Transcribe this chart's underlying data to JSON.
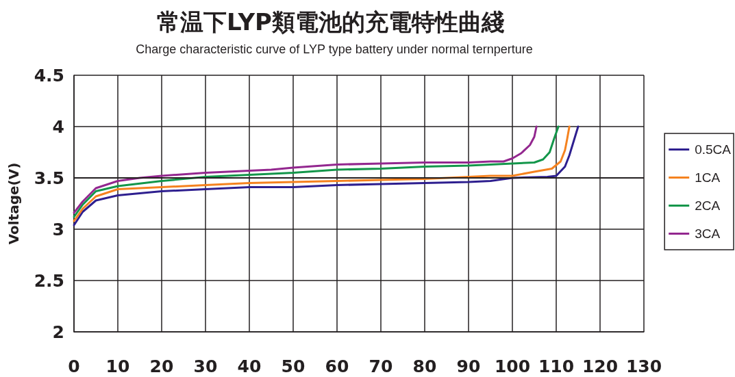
{
  "chart_data": {
    "type": "line",
    "title": "常温下LYP類電池的充電特性曲綫",
    "subtitle": "Charge characteristic curve of LYP type battery under normal ternperture",
    "ylabel": "Voltage(V)",
    "xlim": [
      0,
      130
    ],
    "xticks": [
      0,
      10,
      20,
      30,
      40,
      50,
      60,
      70,
      80,
      90,
      100,
      110,
      120,
      130
    ],
    "ylim": [
      2,
      4.5
    ],
    "yticks": [
      2,
      2.5,
      3,
      3.5,
      4,
      4.5
    ],
    "grid": true,
    "legend": "right",
    "marker": "none",
    "line_style": "solid",
    "ref_lines": [
      {
        "axis": "y",
        "value": 3.5,
        "color": "#231f20"
      }
    ],
    "series": [
      {
        "name": "0.5CA",
        "color": "#2e1f8f",
        "x": [
          0,
          2,
          5,
          10,
          20,
          30,
          40,
          50,
          60,
          70,
          80,
          90,
          95,
          100,
          108,
          110,
          112,
          113,
          114,
          115
        ],
        "values": [
          3.04,
          3.17,
          3.28,
          3.33,
          3.37,
          3.39,
          3.41,
          3.41,
          3.43,
          3.44,
          3.45,
          3.46,
          3.47,
          3.5,
          3.51,
          3.52,
          3.61,
          3.72,
          3.86,
          4.0
        ]
      },
      {
        "name": "1CA",
        "color": "#f5821f",
        "x": [
          0,
          2,
          5,
          10,
          20,
          30,
          40,
          50,
          60,
          70,
          80,
          90,
          95,
          100,
          105,
          109,
          111,
          112,
          112.5,
          113
        ],
        "values": [
          3.08,
          3.2,
          3.32,
          3.39,
          3.41,
          3.43,
          3.45,
          3.46,
          3.47,
          3.48,
          3.49,
          3.51,
          3.52,
          3.52,
          3.56,
          3.59,
          3.66,
          3.77,
          3.88,
          4.0
        ]
      },
      {
        "name": "2CA",
        "color": "#13964a",
        "x": [
          0,
          2,
          5,
          10,
          20,
          30,
          40,
          50,
          60,
          70,
          80,
          90,
          95,
          100,
          105,
          107,
          108.5,
          109.5,
          110.5
        ],
        "values": [
          3.12,
          3.24,
          3.37,
          3.42,
          3.47,
          3.51,
          3.53,
          3.55,
          3.58,
          3.59,
          3.61,
          3.62,
          3.63,
          3.64,
          3.65,
          3.68,
          3.75,
          3.88,
          4.0
        ]
      },
      {
        "name": "3CA",
        "color": "#93278f",
        "x": [
          0,
          2,
          5,
          10,
          15,
          20,
          30,
          40,
          45,
          50,
          60,
          70,
          80,
          90,
          95,
          98,
          100,
          102,
          104,
          105,
          105.5
        ],
        "values": [
          3.16,
          3.27,
          3.4,
          3.47,
          3.5,
          3.52,
          3.55,
          3.57,
          3.58,
          3.6,
          3.63,
          3.64,
          3.65,
          3.65,
          3.66,
          3.66,
          3.69,
          3.74,
          3.82,
          3.9,
          4.0
        ]
      }
    ]
  }
}
